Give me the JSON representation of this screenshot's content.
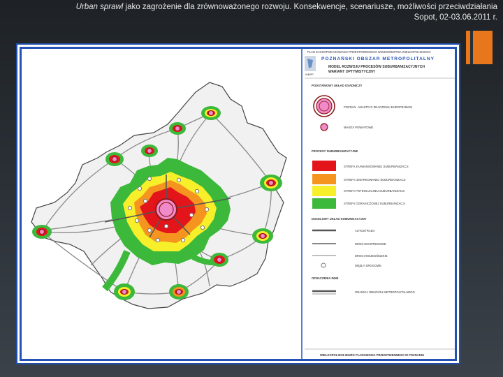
{
  "header": {
    "title_italic": "Urban sprawl",
    "title_rest": " jako zagrożenie dla zrównoważonego rozwoju. Konsekwencje, scenariusze, możliwości przeciwdziałania",
    "subtitle": "Sopot, 02-03.06.2011 r."
  },
  "legend": {
    "top_line": "PLAN ZAGOSPODAROWANIA PRZESTRZENNEGO WOJEWÓDZTWA WIELKOPOLSKIEGO",
    "brand": "POZNAŃSKI OBSZAR METROPOLITALNY",
    "model_line1": "MODEL ROZWOJU PROCESÓW SUBURBANIZACYJNYCH",
    "model_line2": "WARIANT OPTYMISTYCZNY",
    "logo_text": "WBPP",
    "section_base": "PODSTAWOWY UKŁAD OSADNICZY",
    "item_center": "POZNAŃ - MIASTO O ZNACZENIU EUROPEJSKIM",
    "item_towns": "MIASTA POWIATOWE",
    "section_processes": "PROCESY SUBURBANIZACYJNE",
    "zone_red": "STREFA ZAAWANSOWANEJ SUBURBANIZACJI",
    "zone_orange": "STREFA UMIARKOWANEJ SUBURBANIZACJI",
    "zone_yellow": "STREFA POTENCJALNEJ SUBURBANIZACJI",
    "zone_green": "STREFA OGRANICZONEJ SUBURBANIZACJI",
    "section_transport": "DOCELOWY UKŁAD KOMUNIKACYJNY",
    "road_motorway": "AUTOSTRADA",
    "road_expressway": "DROGI EKSPRESOWE",
    "road_regional": "DROGI WOJEWÓDZKIE",
    "road_nodes": "WĘZŁY DROGOWE",
    "section_other": "OZNACZENIA INNE",
    "boundary": "GRANICA OBSZARU METROPOLITALNEGO",
    "footer": "WIELKOPOLSKIE BIURO PLANOWANIA PRZESTRZENNEGO W POZNANIU"
  },
  "colors": {
    "red": "#e4141b",
    "orange": "#f5951f",
    "yellow": "#f7ef2a",
    "green": "#3cb93b",
    "center_pink": "#f08ac8",
    "center_ring": "#8c1a1a",
    "frame_blue": "#2553b5",
    "accent_orange": "#e8761d"
  }
}
